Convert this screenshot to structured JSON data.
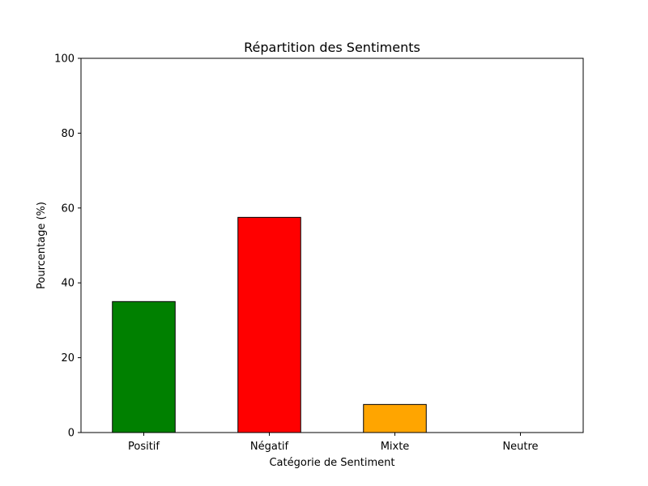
{
  "chart_data": {
    "type": "bar",
    "title": "Répartition des Sentiments",
    "xlabel": "Catégorie de Sentiment",
    "ylabel": "Pourcentage (%)",
    "categories": [
      "Positif",
      "Négatif",
      "Mixte",
      "Neutre"
    ],
    "values": [
      35.0,
      57.5,
      7.5,
      0.0
    ],
    "colors": [
      "#008000",
      "#ff0000",
      "#ffa500",
      "#1f77b4"
    ],
    "edge_color": "#000000",
    "ylim": [
      0,
      100
    ],
    "yticks": [
      0,
      20,
      40,
      60,
      80,
      100
    ],
    "grid": false,
    "legend": false
  }
}
